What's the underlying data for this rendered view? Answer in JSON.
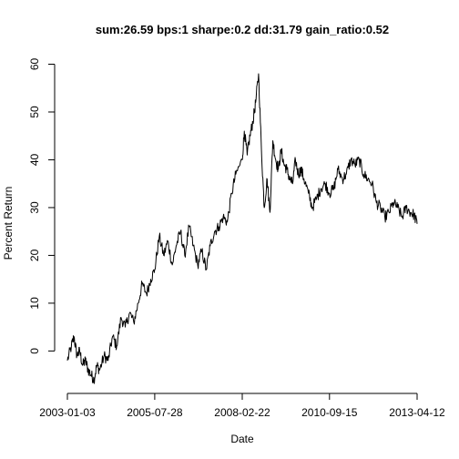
{
  "chart_data": {
    "type": "line",
    "title": "sum:26.59 bps:1 sharpe:0.2 dd:31.79 gain_ratio:0.52",
    "xlabel": "Date",
    "ylabel": "Percent Return",
    "xlim": [
      "2003-01-03",
      "2013-04-12"
    ],
    "ylim": [
      -8.5,
      62
    ],
    "x_ticks": [
      "2003-01-03",
      "2005-07-28",
      "2008-02-22",
      "2010-09-15",
      "2013-04-12"
    ],
    "y_ticks": [
      0,
      10,
      20,
      30,
      40,
      50,
      60
    ],
    "grid": false,
    "series": [
      {
        "color": "#000000",
        "x": [
          "2003-01-03",
          "2003-02-15",
          "2003-03-15",
          "2003-04-15",
          "2003-05-15",
          "2003-06-15",
          "2003-07-15",
          "2003-08-15",
          "2003-09-15",
          "2003-10-15",
          "2003-11-15",
          "2003-12-15",
          "2004-02-01",
          "2004-03-15",
          "2004-05-01",
          "2004-06-15",
          "2004-08-01",
          "2004-09-15",
          "2004-11-01",
          "2004-12-15",
          "2005-02-01",
          "2005-03-15",
          "2005-05-01",
          "2005-06-15",
          "2005-07-28",
          "2005-09-15",
          "2005-11-01",
          "2005-12-15",
          "2006-02-01",
          "2006-03-15",
          "2006-05-01",
          "2006-06-15",
          "2006-08-01",
          "2006-09-15",
          "2006-11-01",
          "2006-12-15",
          "2007-02-01",
          "2007-03-15",
          "2007-05-01",
          "2007-06-15",
          "2007-08-01",
          "2007-09-15",
          "2007-11-01",
          "2007-12-15",
          "2008-02-22",
          "2008-03-15",
          "2008-04-15",
          "2008-05-15",
          "2008-06-15",
          "2008-07-15",
          "2008-08-15",
          "2008-09-15",
          "2008-10-15",
          "2008-11-15",
          "2008-12-15",
          "2009-01-15",
          "2009-02-15",
          "2009-03-15",
          "2009-04-15",
          "2009-05-15",
          "2009-06-15",
          "2009-07-15",
          "2009-08-15",
          "2009-09-15",
          "2009-10-15",
          "2009-11-15",
          "2009-12-15",
          "2010-02-01",
          "2010-03-15",
          "2010-05-01",
          "2010-06-15",
          "2010-08-01",
          "2010-09-15",
          "2010-11-01",
          "2010-12-15",
          "2011-02-01",
          "2011-03-15",
          "2011-05-01",
          "2011-06-15",
          "2011-08-01",
          "2011-09-15",
          "2011-11-01",
          "2011-12-15",
          "2012-02-01",
          "2012-03-15",
          "2012-05-01",
          "2012-06-15",
          "2012-08-01",
          "2012-09-15",
          "2012-11-01",
          "2012-12-15",
          "2013-02-01",
          "2013-03-10",
          "2013-04-12"
        ],
        "values": [
          -2,
          1,
          3,
          -1,
          0,
          -3,
          -2,
          -4,
          -5,
          -6,
          -3,
          -4,
          -1,
          -2,
          3,
          1,
          7,
          5,
          8,
          6,
          10,
          14,
          12,
          15,
          17,
          24,
          20,
          23,
          18,
          22,
          25,
          20,
          26,
          22,
          18,
          21,
          17,
          22,
          25,
          26,
          28,
          27,
          33,
          37,
          40,
          46,
          41,
          45,
          48,
          52,
          58,
          42,
          30,
          36,
          29,
          44,
          40,
          38,
          42,
          39,
          38,
          36,
          35,
          40,
          37,
          38,
          36,
          33,
          30,
          32,
          34,
          35,
          33,
          34,
          38,
          36,
          37,
          40,
          39,
          40,
          37,
          36,
          35,
          31,
          30,
          28,
          29,
          31,
          30,
          28,
          30,
          29,
          28.5,
          26.59
        ]
      }
    ]
  }
}
